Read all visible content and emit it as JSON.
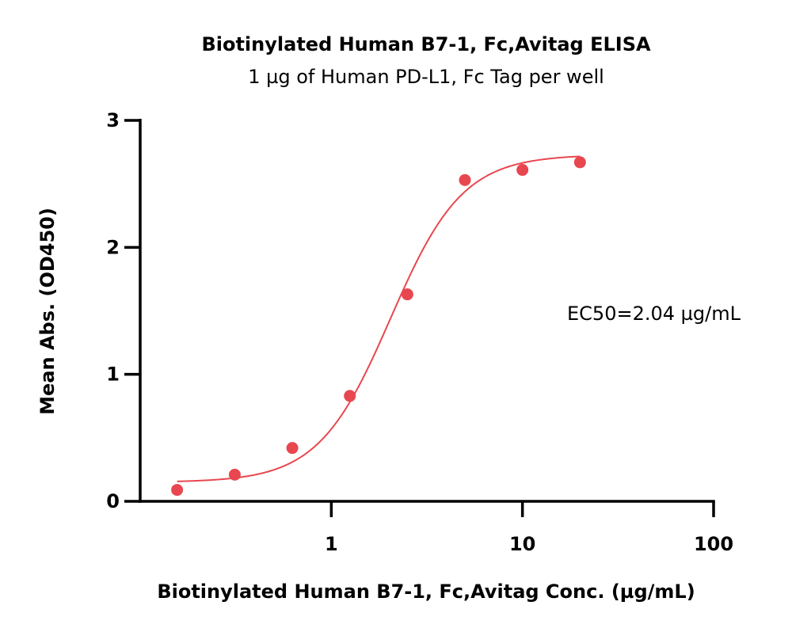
{
  "chart_data": {
    "type": "scatter",
    "title": "Biotinylated Human B7-1, Fc,Avitag ELISA",
    "subtitle": "1 µg of Human PD-L1, Fc Tag per well",
    "xlabel": "Biotinylated Human B7-1, Fc,Avitag Conc. (µg/mL)",
    "ylabel": "Mean Abs. (OD450)",
    "x_scale": "log",
    "xlim": [
      0.1,
      100
    ],
    "ylim": [
      0,
      3
    ],
    "x_ticks": [
      1,
      10,
      100
    ],
    "x_tick_labels": [
      "1",
      "10",
      "100"
    ],
    "y_ticks": [
      0,
      1,
      2,
      3
    ],
    "y_tick_labels": [
      "0",
      "1",
      "2",
      "3"
    ],
    "grid": false,
    "color": "#e8474f",
    "x": [
      0.156,
      0.3125,
      0.625,
      1.25,
      2.5,
      5,
      10,
      20
    ],
    "y": [
      0.09,
      0.21,
      0.42,
      0.83,
      1.63,
      2.53,
      2.61,
      2.67
    ],
    "fit": {
      "model": "4PL",
      "bottom": 0.15,
      "top": 2.73,
      "ec50": 2.04,
      "hill": 2.3
    },
    "annotation": "EC50=2.04 µg/mL"
  }
}
